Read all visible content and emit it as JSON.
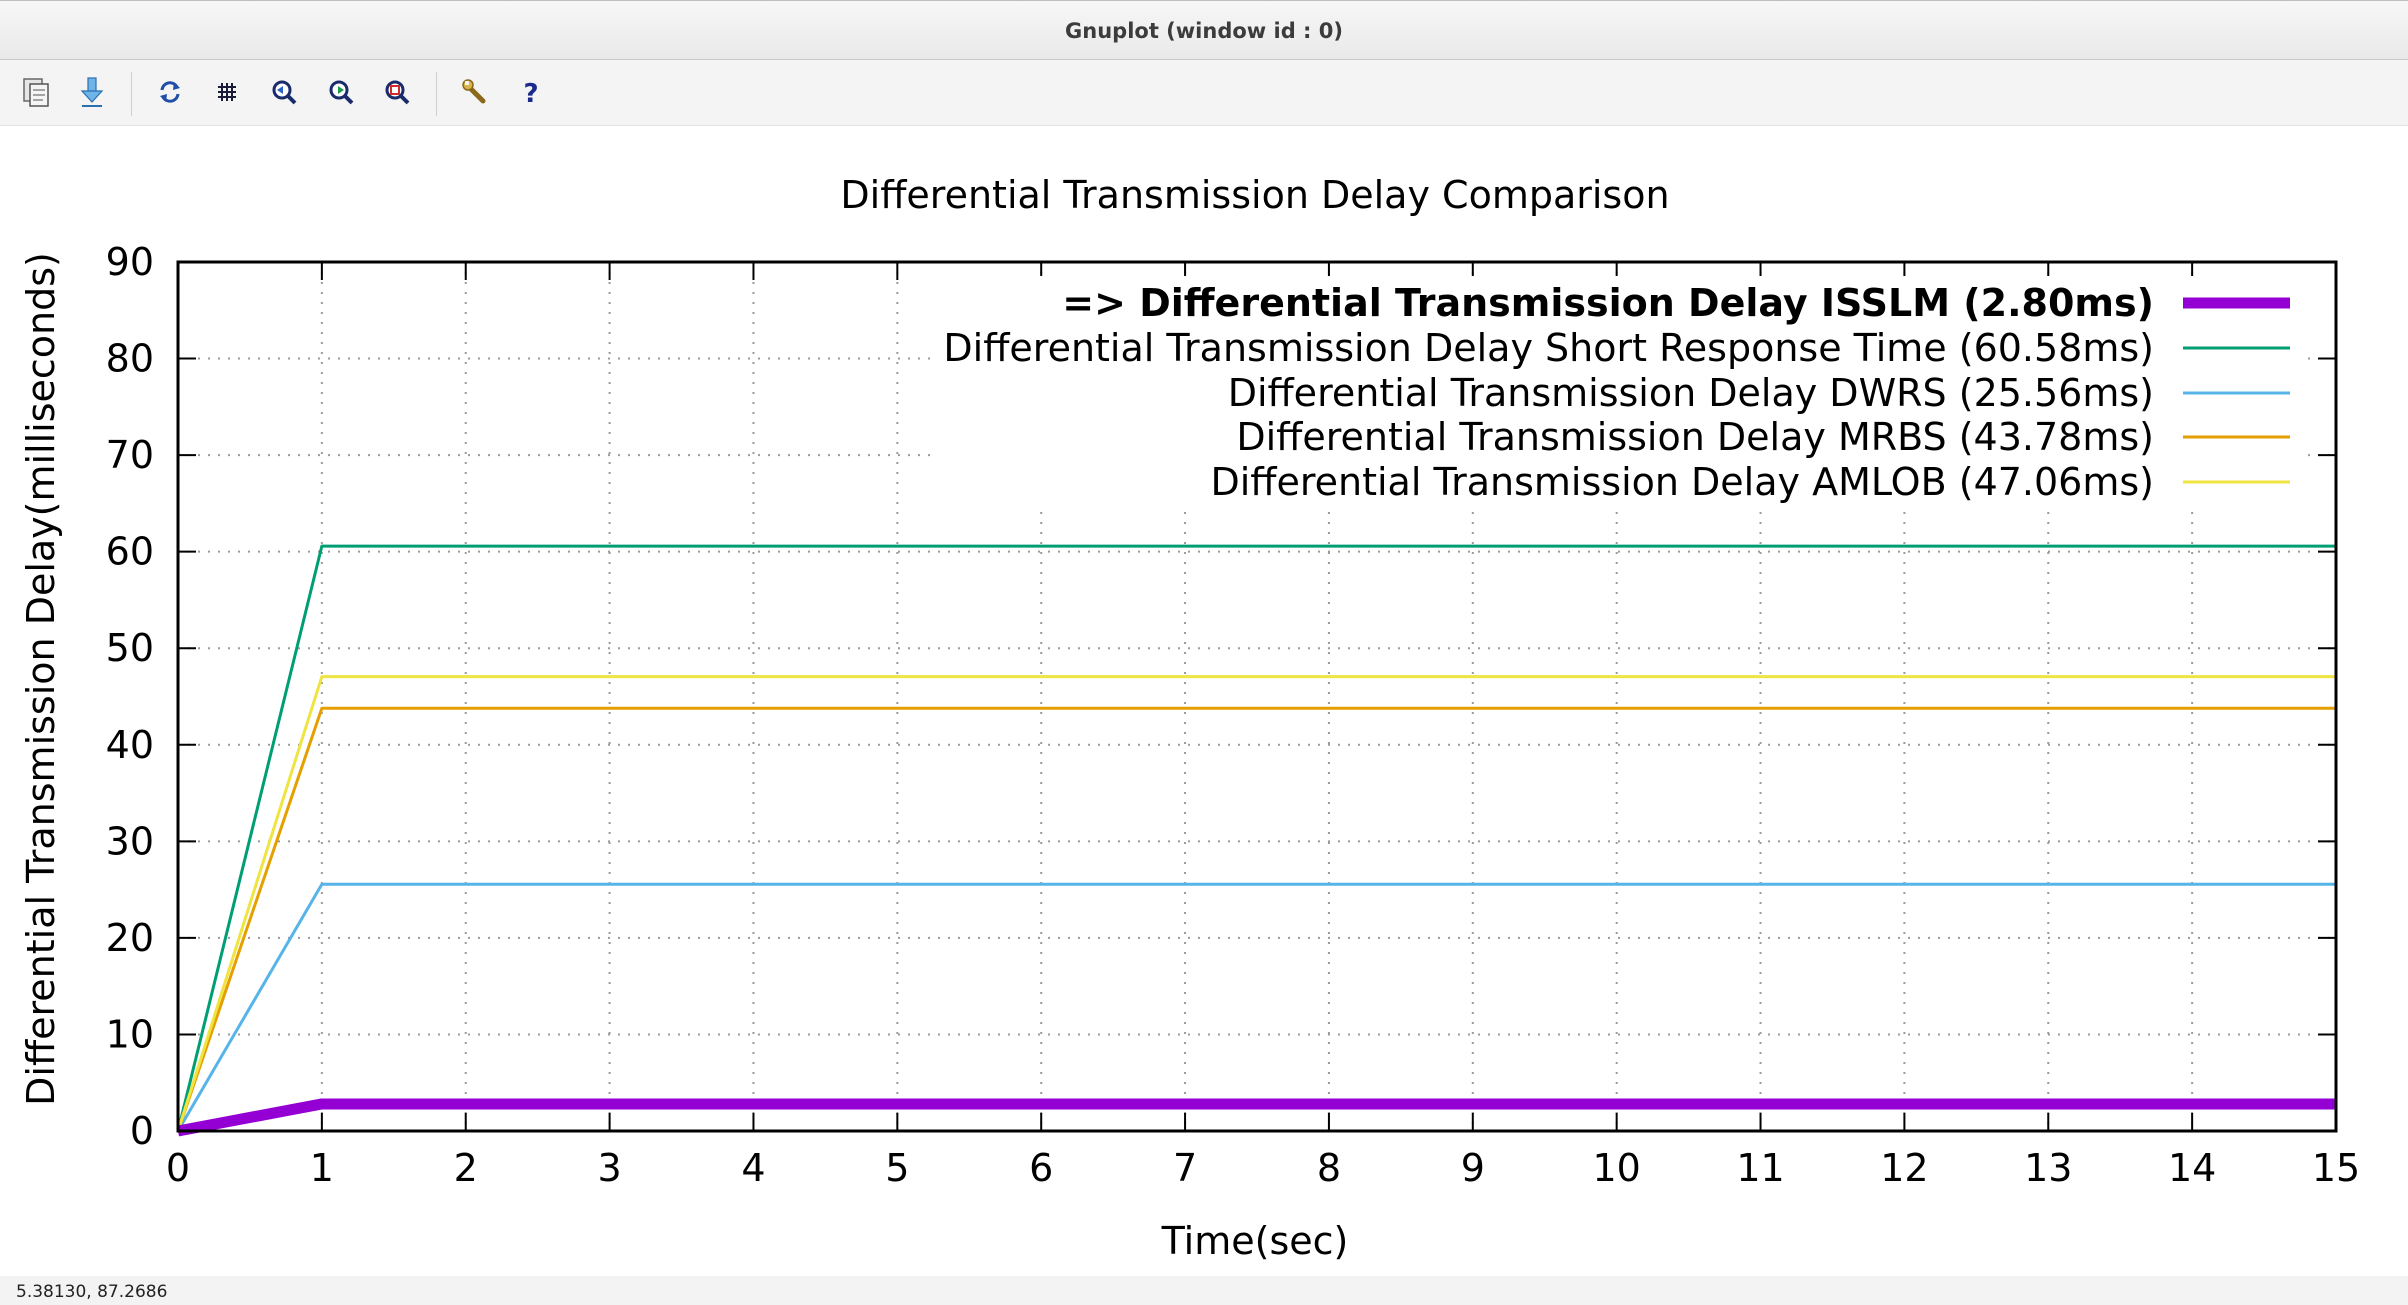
{
  "window": {
    "title": "Gnuplot (window id : 0)"
  },
  "toolbar": {
    "buttons": [
      {
        "name": "copy-to-clipboard",
        "icon": "clipboard-icon"
      },
      {
        "name": "print",
        "icon": "save-arrow-icon"
      },
      {
        "name": "replot",
        "icon": "refresh-icon"
      },
      {
        "name": "toggle-grid",
        "icon": "grid-icon"
      },
      {
        "name": "previous-zoom",
        "icon": "zoom-previous-icon"
      },
      {
        "name": "next-zoom",
        "icon": "zoom-next-icon"
      },
      {
        "name": "autoscale",
        "icon": "zoom-fit-icon"
      },
      {
        "name": "options",
        "icon": "wrench-icon"
      },
      {
        "name": "help",
        "icon": "help-icon"
      }
    ]
  },
  "status": {
    "coordinates": "5.38130,  87.2686"
  },
  "chart_data": {
    "type": "line",
    "title": "Differential Transmission Delay Comparison",
    "xlabel": "Time(sec)",
    "ylabel": "Differential Transmission Delay(milliseconds)",
    "xlim": [
      0,
      15
    ],
    "ylim": [
      0,
      90
    ],
    "xticks": [
      0,
      1,
      2,
      3,
      4,
      5,
      6,
      7,
      8,
      9,
      10,
      11,
      12,
      13,
      14,
      15
    ],
    "yticks": [
      0,
      10,
      20,
      30,
      40,
      50,
      60,
      70,
      80,
      90
    ],
    "grid": true,
    "legend_position": "top-right",
    "series": [
      {
        "name": "=> Differential Transmission Delay ISSLM (2.80ms)",
        "color": "#9400d3",
        "bold": true,
        "x": [
          0,
          1,
          15
        ],
        "y": [
          0,
          2.8,
          2.8
        ]
      },
      {
        "name": "Differential Transmission Delay Short Response Time (60.58ms)",
        "color": "#009e73",
        "bold": false,
        "x": [
          0,
          1,
          15
        ],
        "y": [
          0,
          60.58,
          60.58
        ]
      },
      {
        "name": "Differential Transmission Delay DWRS (25.56ms)",
        "color": "#56b4e9",
        "bold": false,
        "x": [
          0,
          1,
          15
        ],
        "y": [
          0,
          25.56,
          25.56
        ]
      },
      {
        "name": "Differential Transmission Delay MRBS (43.78ms)",
        "color": "#e69f00",
        "bold": false,
        "x": [
          0,
          1,
          15
        ],
        "y": [
          0,
          43.78,
          43.78
        ]
      },
      {
        "name": "Differential Transmission Delay AMLOB (47.06ms)",
        "color": "#f0e442",
        "bold": false,
        "x": [
          0,
          1,
          15
        ],
        "y": [
          0,
          47.06,
          47.06
        ]
      }
    ]
  }
}
